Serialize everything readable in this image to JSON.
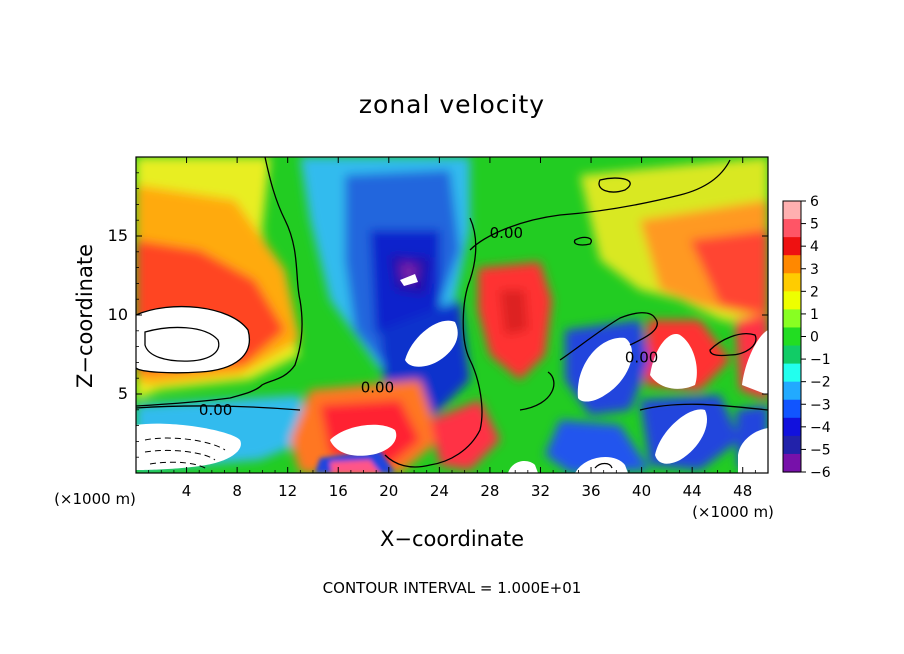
{
  "chart_data": {
    "type": "heatmap",
    "title": "zonal velocity",
    "xlabel": "X−coordinate",
    "ylabel": "Z−coordinate",
    "x_unit_label": "(×1000 m)",
    "y_unit_label": "(×1000 m)",
    "xlim": [
      0,
      50
    ],
    "ylim": [
      0,
      20
    ],
    "x_ticks": [
      4,
      8,
      12,
      16,
      20,
      24,
      28,
      32,
      36,
      40,
      44,
      48
    ],
    "y_ticks": [
      5,
      10,
      15
    ],
    "x_tick_labels": [
      "4",
      "8",
      "12",
      "16",
      "20",
      "24",
      "28",
      "32",
      "36",
      "40",
      "44",
      "48"
    ],
    "y_tick_labels": [
      "5",
      "10",
      "15"
    ],
    "colorbar": {
      "min": -6,
      "max": 6,
      "ticks": [
        6,
        5,
        4,
        3,
        2,
        1,
        0,
        -1,
        -2,
        -3,
        -4,
        -5,
        -6
      ],
      "tick_labels": [
        "6",
        "5",
        "4",
        "3",
        "2",
        "1",
        "0",
        "−1",
        "−2",
        "−3",
        "−4",
        "−5",
        "−6"
      ]
    },
    "contour_labels": [
      {
        "text": "0.00",
        "x": 6.3,
        "z": 4.0
      },
      {
        "text": "0.00",
        "x": 19.1,
        "z": 5.4
      },
      {
        "text": "0.00",
        "x": 29.3,
        "z": 15.2
      },
      {
        "text": "0.00",
        "x": 40.0,
        "z": 7.3
      }
    ],
    "grid": false,
    "footer": "CONTOUR INTERVAL = 1.000E+01"
  }
}
